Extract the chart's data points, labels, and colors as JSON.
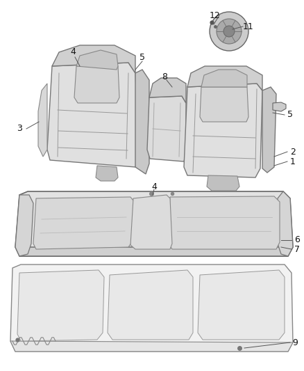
{
  "background_color": "#ffffff",
  "figure_width": 4.38,
  "figure_height": 5.33,
  "dpi": 100,
  "line_color": "#555555",
  "text_color": "#111111",
  "font_size": 9,
  "fill_light": "#e8e8e8",
  "fill_mid": "#d8d8d8",
  "fill_dark": "#c8c8c8",
  "edge_color": "#666666"
}
